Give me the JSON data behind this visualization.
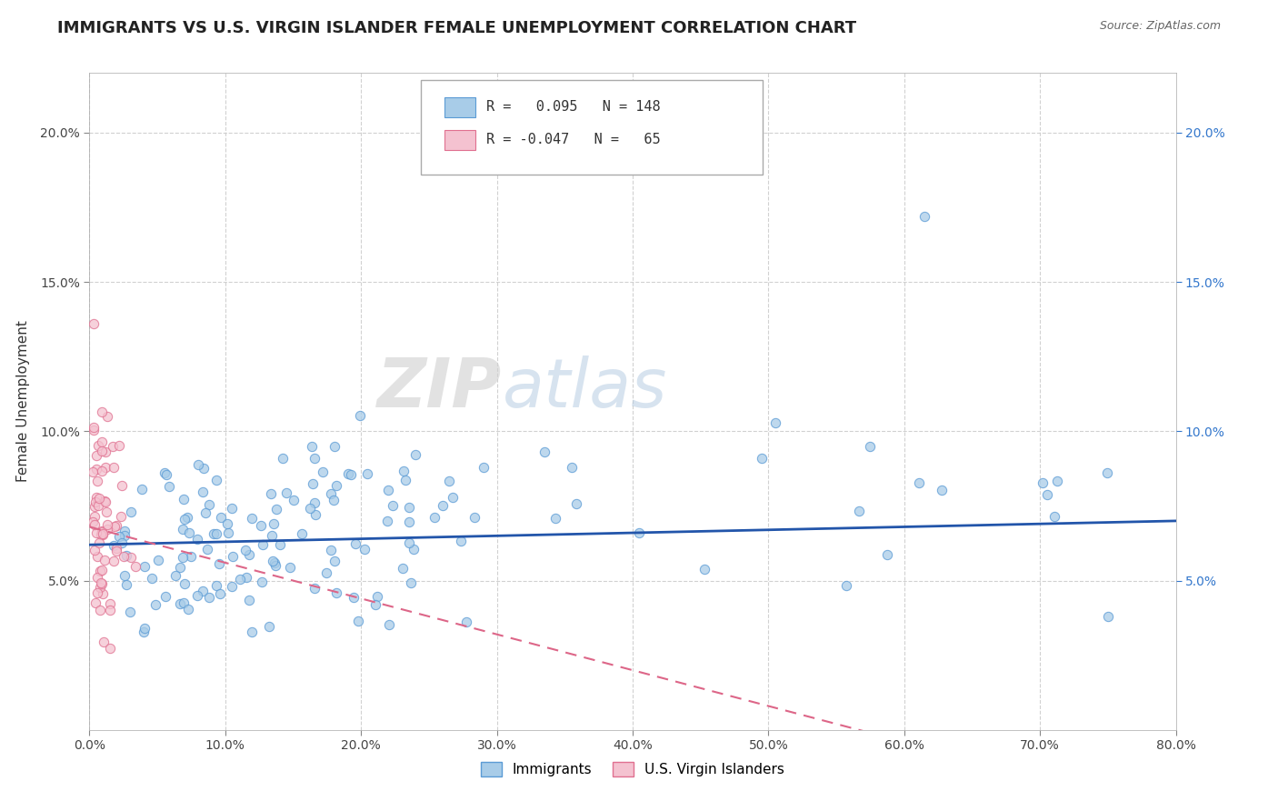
{
  "title": "IMMIGRANTS VS U.S. VIRGIN ISLANDER FEMALE UNEMPLOYMENT CORRELATION CHART",
  "source": "Source: ZipAtlas.com",
  "ylabel": "Female Unemployment",
  "xlim": [
    0.0,
    0.8
  ],
  "ylim": [
    0.0,
    0.22
  ],
  "yticks": [
    0.05,
    0.1,
    0.15,
    0.2
  ],
  "ytick_labels": [
    "5.0%",
    "10.0%",
    "15.0%",
    "20.0%"
  ],
  "xticks": [
    0.0,
    0.1,
    0.2,
    0.3,
    0.4,
    0.5,
    0.6,
    0.7,
    0.8
  ],
  "xtick_labels": [
    "0.0%",
    "10.0%",
    "20.0%",
    "30.0%",
    "40.0%",
    "50.0%",
    "60.0%",
    "70.0%",
    "80.0%"
  ],
  "immigrants_R": 0.095,
  "immigrants_N": 148,
  "virgin_R": -0.047,
  "virgin_N": 65,
  "immigrants_color": "#a8cce8",
  "immigrants_edge": "#5b9bd5",
  "virgin_color": "#f4c2d0",
  "virgin_edge": "#e07090",
  "trend_immigrants_color": "#2255aa",
  "trend_virgin_color": "#dd6688",
  "watermark_zip": "#cccccc",
  "watermark_atlas": "#aabbdd",
  "background_color": "#ffffff",
  "grid_color": "#cccccc",
  "title_fontsize": 13,
  "label_fontsize": 11,
  "tick_fontsize": 10,
  "right_tick_color": "#3377cc"
}
